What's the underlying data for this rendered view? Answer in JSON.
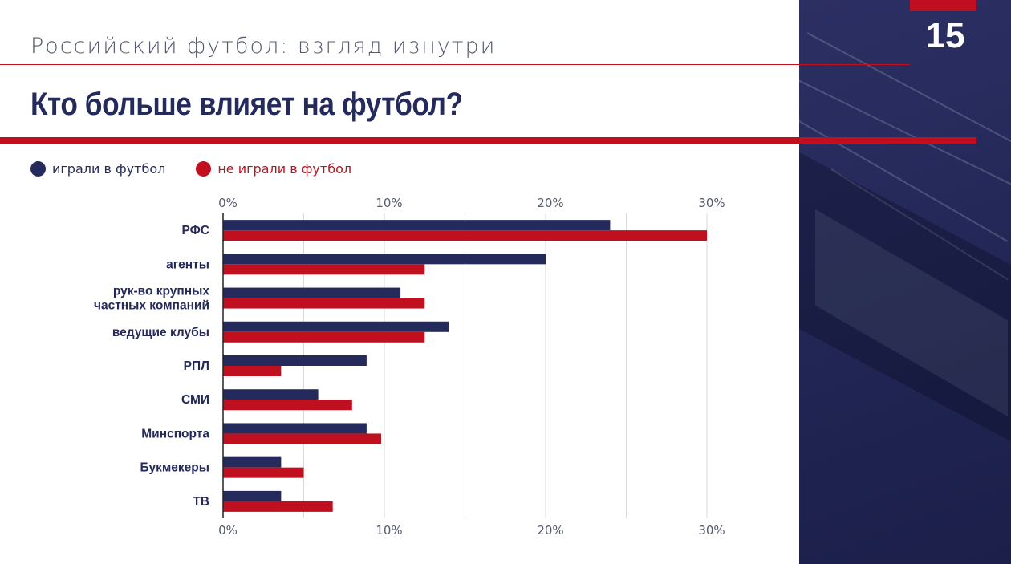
{
  "header": {
    "subtitle": "Российский футбол: взгляд изнутри",
    "title": "Кто больше влияет на футбол?",
    "page_number": "15"
  },
  "colors": {
    "navy": "#252a5c",
    "red": "#c0101f",
    "accent_red": "#c0101f",
    "text_gray": "#555a6e"
  },
  "chart_data": {
    "type": "bar",
    "orientation": "horizontal",
    "title": "Кто больше влияет на футбол?",
    "xlabel": "",
    "ylabel": "",
    "xlim": [
      0,
      30
    ],
    "ticks": [
      {
        "value": 0,
        "label": "0%"
      },
      {
        "value": 10,
        "label": "10%"
      },
      {
        "value": 20,
        "label": "20%"
      },
      {
        "value": 30,
        "label": "30%"
      }
    ],
    "categories": [
      [
        "РФС"
      ],
      [
        "агенты"
      ],
      [
        "рук-во крупных",
        "частных компаний"
      ],
      [
        "ведущие клубы"
      ],
      [
        "РПЛ"
      ],
      [
        "СМИ"
      ],
      [
        "Минспорта"
      ],
      [
        "Букмекеры"
      ],
      [
        "ТВ"
      ]
    ],
    "series": [
      {
        "name": "играли в футбол",
        "color": "#252a5c",
        "values": [
          24,
          20,
          11,
          14,
          8.9,
          5.9,
          8.9,
          3.6,
          3.6
        ]
      },
      {
        "name": "не играли в футбол",
        "color": "#c0101f",
        "values": [
          30,
          12.5,
          12.5,
          12.5,
          3.6,
          8,
          9.8,
          5,
          6.8
        ]
      }
    ],
    "legend_position": "top-left",
    "grid": true
  }
}
